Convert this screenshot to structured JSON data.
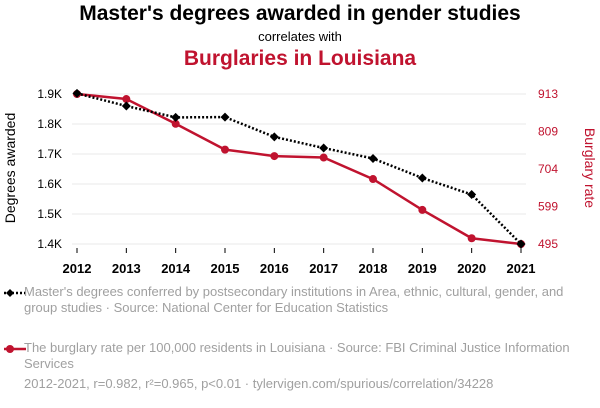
{
  "header": {
    "title": "Master's degrees awarded in gender studies",
    "subtitle": "correlates with",
    "title2": "Burglaries in Louisiana"
  },
  "colors": {
    "series1": "#000000",
    "series2": "#c0132f",
    "muted": "#a0a0a0"
  },
  "chart_data": {
    "type": "line",
    "x": [
      2012,
      2013,
      2014,
      2015,
      2016,
      2017,
      2018,
      2019,
      2020,
      2021
    ],
    "left_axis": {
      "label": "Degrees awarded",
      "ticks": [
        1400,
        1500,
        1600,
        1700,
        1800,
        1900
      ],
      "tick_labels": [
        "1.4K",
        "1.5K",
        "1.6K",
        "1.7K",
        "1.8K",
        "1.9K"
      ],
      "ylim": [
        1400,
        1900
      ]
    },
    "right_axis": {
      "label": "Burglary rate",
      "ticks": [
        495,
        599,
        704,
        809,
        913
      ],
      "tick_labels": [
        "495",
        "599",
        "704",
        "809",
        "913"
      ],
      "ylim": [
        495,
        913
      ]
    },
    "series": [
      {
        "axis": "left",
        "marker": "diamond",
        "line": "dotted",
        "values": [
          1902,
          1860,
          1822,
          1823,
          1757,
          1720,
          1685,
          1620,
          1565,
          1400
        ]
      },
      {
        "axis": "right",
        "marker": "circle",
        "line": "solid",
        "values": [
          913,
          899,
          830,
          758,
          740,
          736,
          676,
          590,
          511,
          495
        ]
      }
    ],
    "grid": true
  },
  "legend": {
    "items": [
      {
        "text": "Master's degrees conferred by postsecondary institutions in Area, ethnic, cultural, gender, and group studies · Source: National Center for Education Statistics"
      },
      {
        "text": "The burglary rate per 100,000 residents in Louisiana · Source: FBI Criminal Justice Information Services"
      }
    ]
  },
  "footer": {
    "text": "2012-2021, r=0.982, r²=0.965, p<0.01 · tylervigen.com/spurious/correlation/34228"
  }
}
